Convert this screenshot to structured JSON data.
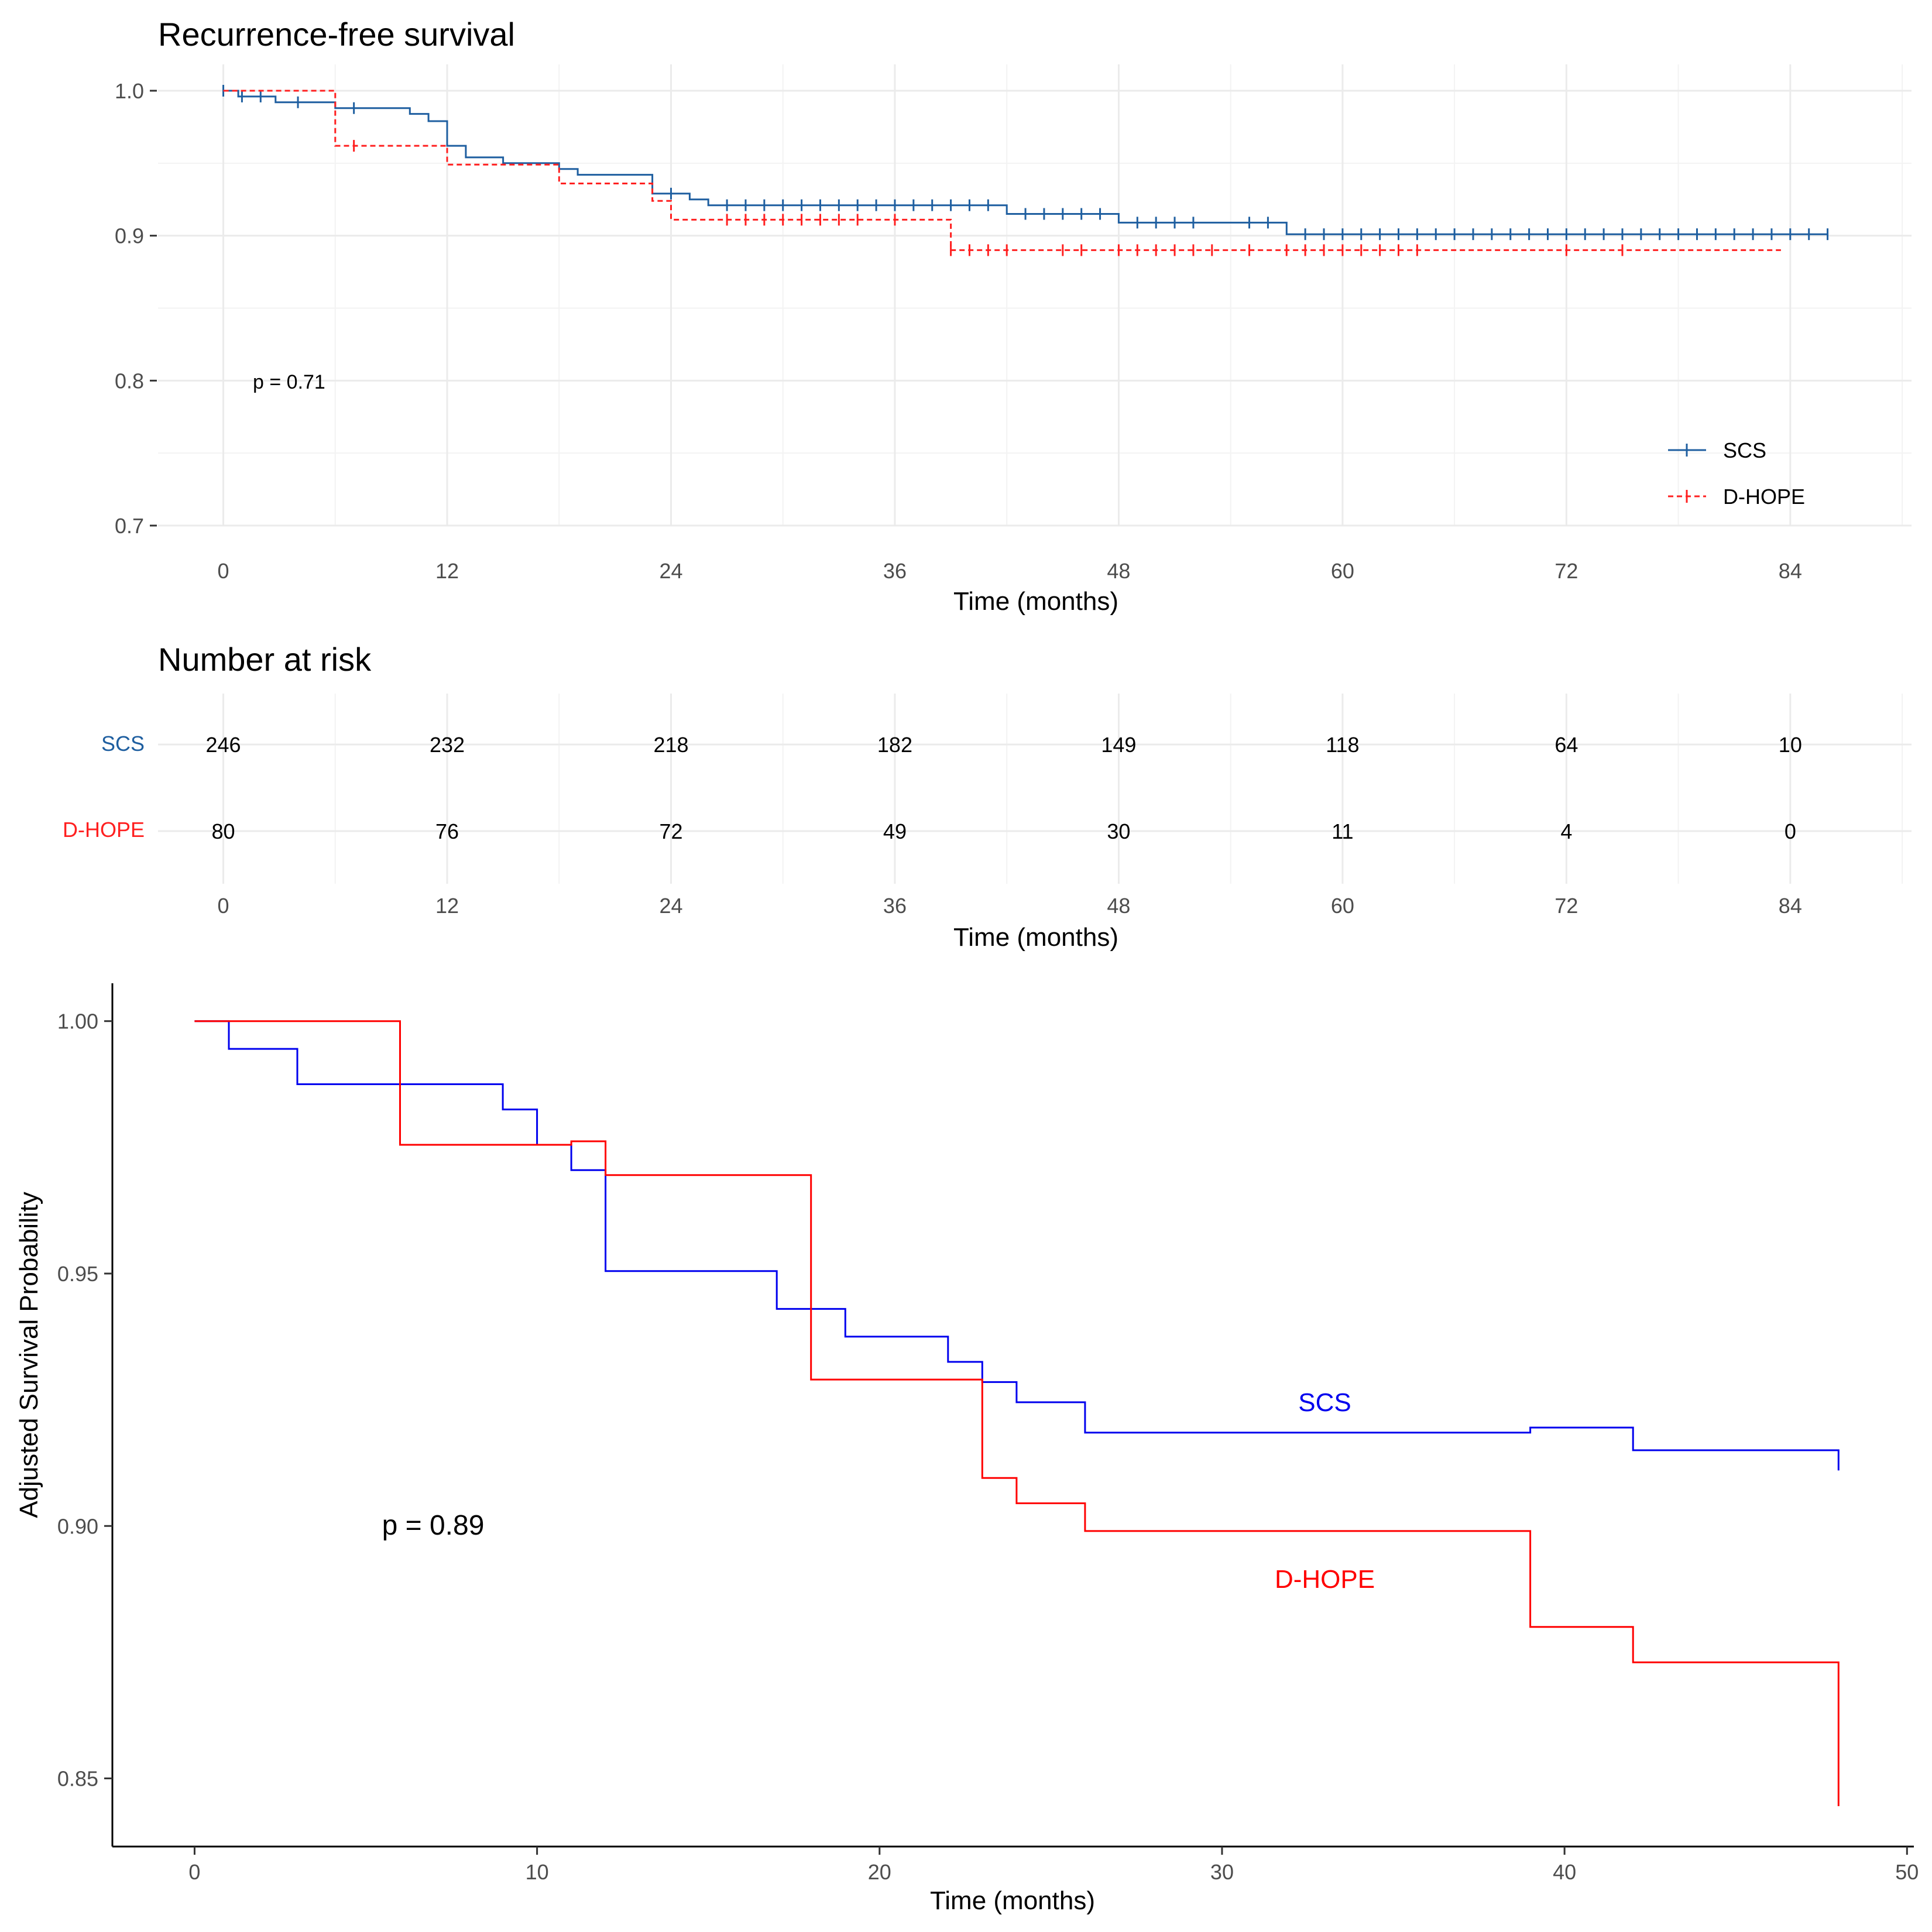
{
  "colors": {
    "scs_top": "#1f5fa0",
    "dhope_top": "#ff2020",
    "scs_bottom": "#0000ee",
    "dhope_bottom": "#ff0000",
    "text": "#000000",
    "tick": "#4d4d4d",
    "grid": "#ebebeb"
  },
  "chart_data": [
    {
      "id": "rfs",
      "type": "line",
      "subtype": "kaplan-meier",
      "title": "Recurrence-free survival",
      "xlabel": "Time (months)",
      "ylabel": "",
      "xlim": [
        -3.5,
        90.5
      ],
      "ylim": [
        0.7,
        1.0
      ],
      "xticks": [
        0,
        12,
        24,
        36,
        48,
        60,
        72,
        84
      ],
      "xtick_labels": [
        "0",
        "12",
        "24",
        "36",
        "48",
        "60",
        "72",
        "84"
      ],
      "yticks": [
        0.7,
        0.8,
        0.9,
        1.0
      ],
      "ytick_labels": [
        "0.7",
        "0.8",
        "0.9",
        "1.0"
      ],
      "grid": true,
      "annotation": "p = 0.71",
      "legend": {
        "position": "bottom-right",
        "entries": [
          "SCS",
          "D-HOPE"
        ]
      },
      "series": [
        {
          "name": "SCS",
          "line_style": "solid",
          "steps": [
            [
              0,
              1.0
            ],
            [
              0.8,
              0.996
            ],
            [
              2.8,
              0.992
            ],
            [
              6,
              0.988
            ],
            [
              10,
              0.984
            ],
            [
              11,
              0.979
            ],
            [
              12,
              0.962
            ],
            [
              13,
              0.954
            ],
            [
              15,
              0.95
            ],
            [
              18,
              0.946
            ],
            [
              19,
              0.942
            ],
            [
              23,
              0.929
            ],
            [
              25,
              0.925
            ],
            [
              26,
              0.921
            ],
            [
              42,
              0.915
            ],
            [
              48,
              0.909
            ],
            [
              57,
              0.901
            ],
            [
              86,
              0.901
            ]
          ],
          "censor": [
            0,
            1,
            2,
            4,
            7,
            24,
            27,
            28,
            29,
            30,
            31,
            32,
            33,
            34,
            35,
            36,
            37,
            38,
            39,
            40,
            41,
            43,
            44,
            45,
            46,
            47,
            49,
            50,
            51,
            52,
            55,
            56,
            58,
            59,
            60,
            61,
            62,
            63,
            64,
            65,
            66,
            67,
            68,
            69,
            70,
            71,
            72,
            73,
            74,
            75,
            76,
            77,
            78,
            79,
            80,
            81,
            82,
            83,
            84,
            85,
            86
          ]
        },
        {
          "name": "D-HOPE",
          "line_style": "dashed",
          "steps": [
            [
              0,
              1.0
            ],
            [
              6,
              0.962
            ],
            [
              12,
              0.949
            ],
            [
              18,
              0.936
            ],
            [
              23,
              0.924
            ],
            [
              24,
              0.911
            ],
            [
              39,
              0.89
            ],
            [
              83.5,
              0.89
            ]
          ],
          "censor": [
            7,
            27,
            28,
            29,
            30,
            31,
            32,
            33,
            34,
            36,
            39,
            40,
            41,
            42,
            45,
            46,
            48,
            49,
            50,
            51,
            52,
            53,
            55,
            57,
            58,
            59,
            60,
            61,
            62,
            63,
            64,
            72,
            75
          ]
        }
      ]
    },
    {
      "id": "risk",
      "type": "table",
      "title": "Number at risk",
      "xlabel": "Time (months)",
      "times": [
        0,
        12,
        24,
        36,
        48,
        60,
        72,
        84
      ],
      "time_labels": [
        "0",
        "12",
        "24",
        "36",
        "48",
        "60",
        "72",
        "84"
      ],
      "rows": [
        {
          "name": "SCS",
          "values": [
            "246",
            "232",
            "218",
            "182",
            "149",
            "118",
            "64",
            "10"
          ]
        },
        {
          "name": "D-HOPE",
          "values": [
            "80",
            "76",
            "72",
            "49",
            "30",
            "11",
            "4",
            "0"
          ]
        }
      ]
    },
    {
      "id": "adjusted",
      "type": "line",
      "subtype": "adjusted-survival",
      "title": "",
      "xlabel": "Time (months)",
      "ylabel": "Adjusted Survival Probability",
      "xlim": [
        -2.4,
        50.2
      ],
      "ylim": [
        0.8365,
        1.0075
      ],
      "xticks": [
        0,
        10,
        20,
        30,
        40,
        50
      ],
      "xtick_labels": [
        "0",
        "10",
        "20",
        "30",
        "40",
        "50"
      ],
      "yticks": [
        0.85,
        0.9,
        0.95,
        1.0
      ],
      "ytick_labels": [
        "0.85",
        "0.90",
        "0.95",
        "1.00"
      ],
      "grid": false,
      "annotation": "p = 0.89",
      "series_labels": [
        {
          "text": "SCS",
          "x": 33.0,
          "y": 0.9245
        },
        {
          "text": "D-HOPE",
          "x": 33.0,
          "y": 0.8895
        }
      ],
      "series": [
        {
          "name": "SCS",
          "steps": [
            [
              0,
              1.0
            ],
            [
              1,
              0.9945
            ],
            [
              3,
              0.9875
            ],
            [
              9,
              0.9825
            ],
            [
              10,
              0.9755
            ],
            [
              11,
              0.9705
            ],
            [
              12,
              0.9505
            ],
            [
              17,
              0.943
            ],
            [
              19,
              0.9375
            ],
            [
              22,
              0.9325
            ],
            [
              23,
              0.9285
            ],
            [
              24,
              0.9245
            ],
            [
              26,
              0.9185
            ],
            [
              39,
              0.9195
            ],
            [
              42,
              0.915
            ],
            [
              48,
              0.911
            ]
          ],
          "end": 48
        },
        {
          "name": "D-HOPE",
          "steps": [
            [
              0,
              1.0
            ],
            [
              6,
              0.9755
            ],
            [
              11,
              0.9762
            ],
            [
              12,
              0.9695
            ],
            [
              18,
              0.929
            ],
            [
              23,
              0.9095
            ],
            [
              24,
              0.9045
            ],
            [
              26,
              0.899
            ],
            [
              39,
              0.88
            ],
            [
              42,
              0.873
            ],
            [
              48,
              0.8445
            ]
          ],
          "end": 48
        }
      ]
    }
  ]
}
